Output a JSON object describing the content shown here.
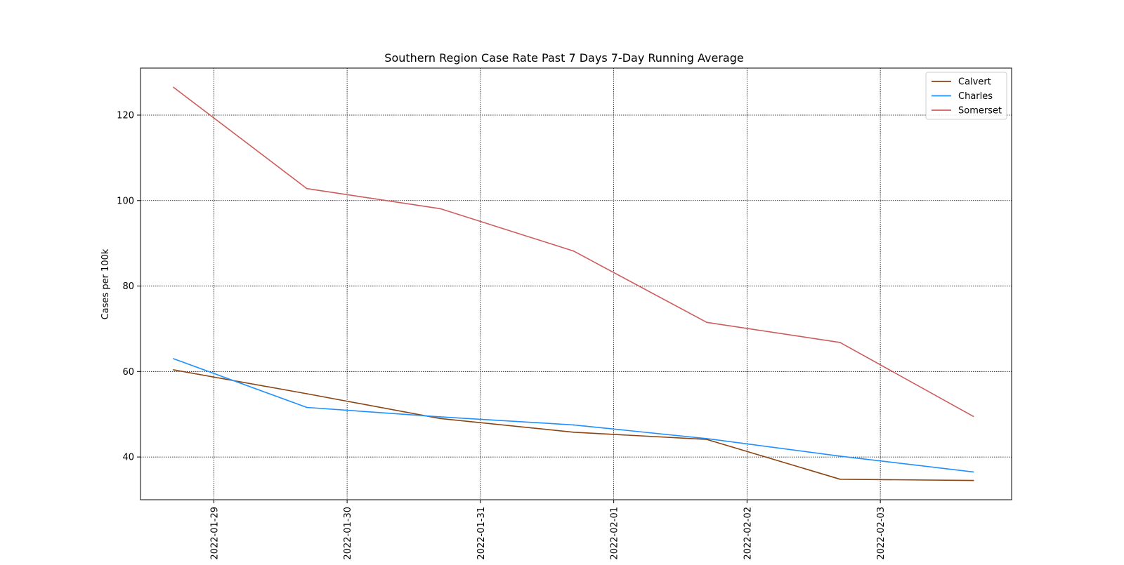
{
  "chart_data": {
    "type": "line",
    "title": "Southern Region Case Rate  Past 7 Days 7-Day Running Average",
    "xlabel": "",
    "ylabel": "Cases per 100k",
    "x_ticks": [
      "2022-01-29",
      "2022-01-30",
      "2022-01-31",
      "2022-02-01",
      "2022-02-02",
      "2022-02-03"
    ],
    "y_ticks": [
      40,
      60,
      80,
      100,
      120
    ],
    "xlim": [
      "2022-01-28 10:48",
      "2022-02-03 23:38"
    ],
    "ylim": [
      30,
      131
    ],
    "grid": true,
    "grid_style": "dotted",
    "legend_position": "top-right",
    "x": [
      "2022-01-28 16:45",
      "2022-01-29 16:45",
      "2022-01-30 16:45",
      "2022-01-31 16:45",
      "2022-02-01 16:45",
      "2022-02-02 16:45",
      "2022-02-03 16:45"
    ],
    "series": [
      {
        "name": "Calvert",
        "color": "#8B4513",
        "values": [
          60.4,
          54.8,
          49.0,
          45.8,
          44.1,
          34.8,
          34.5
        ]
      },
      {
        "name": "Charles",
        "color": "#1E90FF",
        "values": [
          63.0,
          51.6,
          49.4,
          47.5,
          44.3,
          40.2,
          36.5
        ]
      },
      {
        "name": "Somerset",
        "color": "#CD5C5C",
        "values": [
          126.5,
          102.8,
          98.1,
          88.2,
          71.5,
          66.8,
          49.5
        ]
      }
    ]
  }
}
